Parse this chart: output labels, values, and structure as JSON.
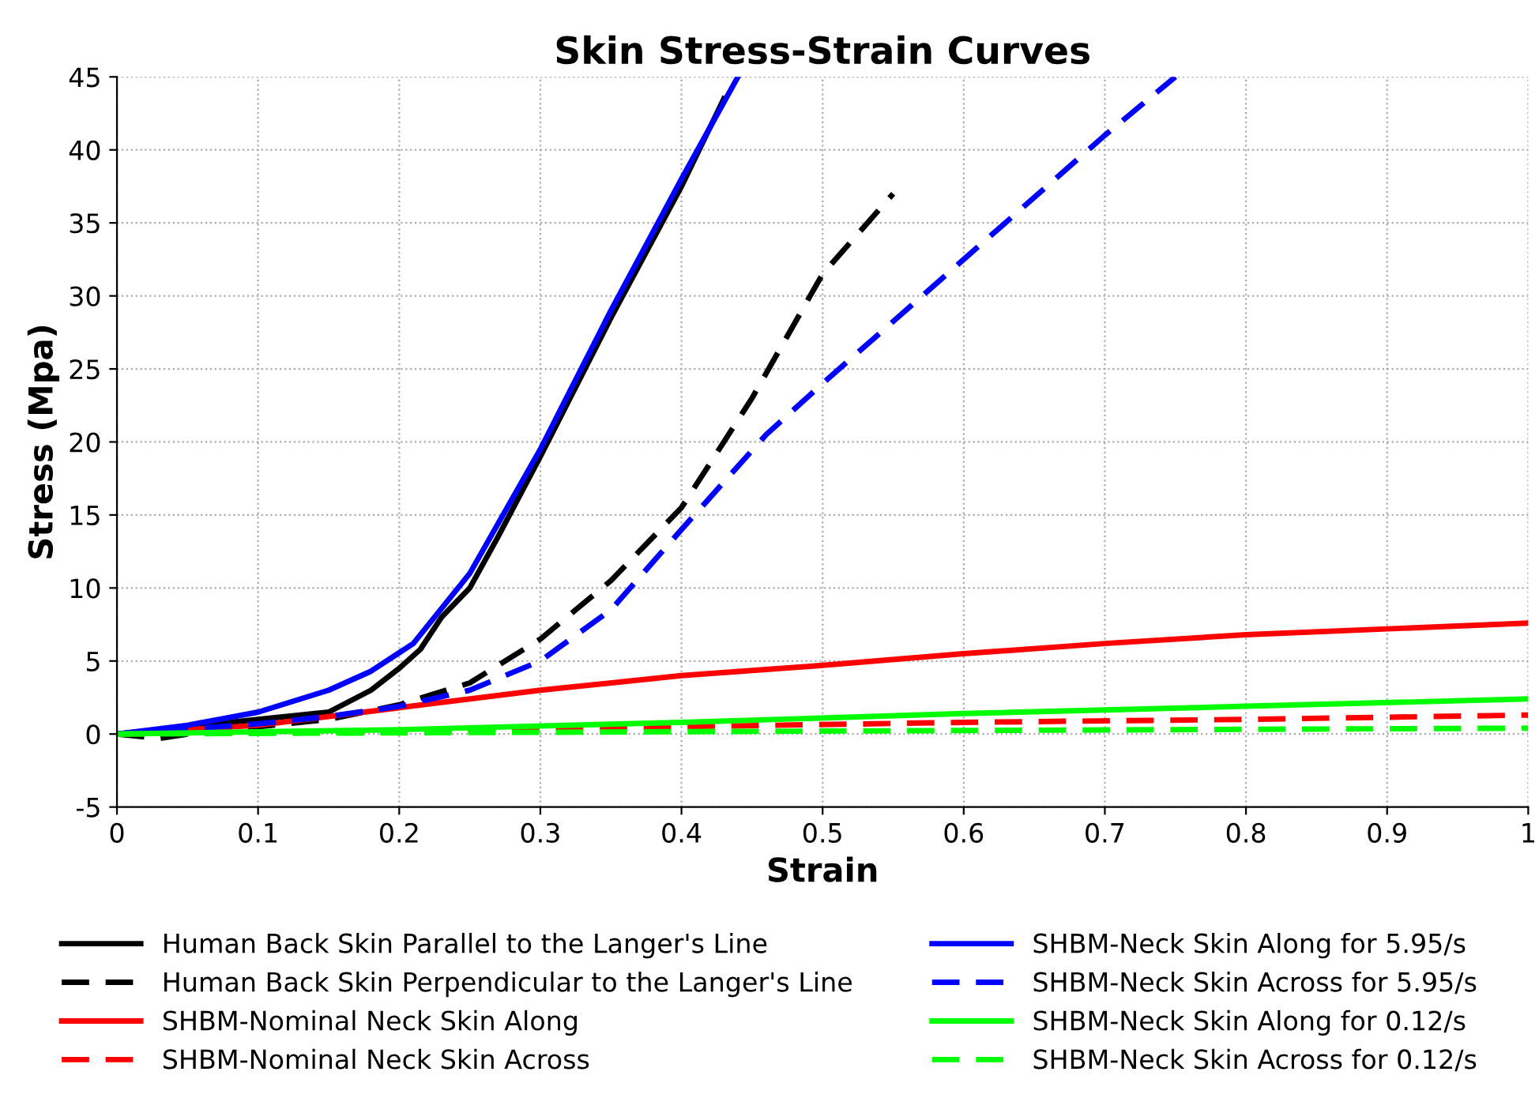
{
  "chart_data": {
    "type": "line",
    "title": "Skin Stress-Strain Curves",
    "xlabel": "Strain",
    "ylabel": "Stress (Mpa)",
    "xlim": [
      0,
      1
    ],
    "ylim": [
      -5,
      45
    ],
    "xticks": [
      0,
      0.1,
      0.2,
      0.3,
      0.4,
      0.5,
      0.6,
      0.7,
      0.8,
      0.9,
      1
    ],
    "yticks": [
      -5,
      0,
      5,
      10,
      15,
      20,
      25,
      30,
      35,
      40,
      45
    ],
    "grid": true,
    "legend": "bottom",
    "marker": "none",
    "series": [
      {
        "name": "Human Back Skin Parallel to the Langer's Line",
        "color": "#000000",
        "line_style": "solid",
        "x": [
          0,
          0.05,
          0.1,
          0.15,
          0.18,
          0.2,
          0.215,
          0.23,
          0.25,
          0.27,
          0.3,
          0.35,
          0.4,
          0.43
        ],
        "values": [
          0,
          0.5,
          1.0,
          1.5,
          3,
          4.5,
          5.8,
          8,
          10,
          13.5,
          19,
          28.5,
          37.5,
          43.5
        ]
      },
      {
        "name": "Human Back Skin Perpendicular to the Langer's Line",
        "color": "#000000",
        "line_style": "dashed",
        "x": [
          0,
          0.03,
          0.05,
          0.1,
          0.15,
          0.2,
          0.25,
          0.3,
          0.35,
          0.4,
          0.45,
          0.5,
          0.55
        ],
        "values": [
          0,
          -0.3,
          0,
          0.5,
          1,
          2,
          3.5,
          6.5,
          10.5,
          15.5,
          23,
          31.5,
          37
        ]
      },
      {
        "name": "SHBM-Nominal Neck Skin Along",
        "color": "#ff0000",
        "line_style": "solid",
        "x": [
          0,
          0.1,
          0.2,
          0.3,
          0.4,
          0.5,
          0.6,
          0.7,
          0.8,
          0.9,
          1
        ],
        "values": [
          0,
          0.6,
          1.8,
          3,
          4,
          4.7,
          5.5,
          6.2,
          6.8,
          7.2,
          7.6
        ]
      },
      {
        "name": "SHBM-Nominal Neck Skin Across",
        "color": "#ff0000",
        "line_style": "dashed",
        "x": [
          0,
          0.2,
          0.4,
          0.6,
          0.8,
          1
        ],
        "values": [
          0,
          0.2,
          0.5,
          0.8,
          1.0,
          1.3
        ]
      },
      {
        "name": "SHBM-Neck Skin Along for 5.95/s",
        "color": "#0000ff",
        "line_style": "solid",
        "x": [
          0,
          0.05,
          0.1,
          0.15,
          0.18,
          0.21,
          0.25,
          0.3,
          0.35,
          0.4,
          0.44
        ],
        "values": [
          0,
          0.6,
          1.5,
          3,
          4.3,
          6.2,
          11,
          19.5,
          29,
          38,
          45
        ]
      },
      {
        "name": "SHBM-Neck Skin Across for 5.95/s",
        "color": "#0000ff",
        "line_style": "dashed",
        "x": [
          0,
          0.1,
          0.15,
          0.2,
          0.25,
          0.3,
          0.35,
          0.4,
          0.46,
          0.5,
          0.6,
          0.7,
          0.75
        ],
        "values": [
          0,
          0.7,
          1.2,
          1.9,
          3,
          5,
          8.5,
          14,
          20.5,
          24,
          32.5,
          41,
          45
        ]
      },
      {
        "name": "SHBM-Neck Skin Along for 0.12/s",
        "color": "#00ff00",
        "line_style": "solid",
        "x": [
          0,
          0.2,
          0.4,
          0.6,
          0.8,
          1
        ],
        "values": [
          0,
          0.3,
          0.8,
          1.4,
          1.9,
          2.4
        ]
      },
      {
        "name": "SHBM-Neck Skin Across for 0.12/s",
        "color": "#00ff00",
        "line_style": "dashed",
        "x": [
          0,
          0.5,
          1
        ],
        "values": [
          0,
          0.2,
          0.4
        ]
      }
    ]
  }
}
